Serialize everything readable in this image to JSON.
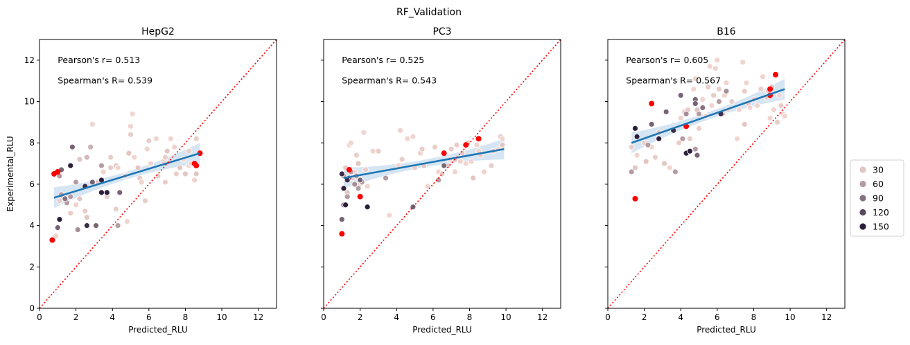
{
  "figure": {
    "suptitle": "RF_Validation",
    "hue_legend": {
      "entries": [
        {
          "label": "30",
          "value": 30
        },
        {
          "label": "60",
          "value": 60
        },
        {
          "label": "90",
          "value": 90
        },
        {
          "label": "120",
          "value": 120
        },
        {
          "label": "150",
          "value": 150
        }
      ]
    },
    "colors": {
      "palette_low": "#f0d4cf",
      "palette_high": "#2c1e3d",
      "fit_line": "#1f77b4",
      "ci_band": "#cfe0f1",
      "diagonal": "#ff0000",
      "highlight": "#ff0000"
    }
  },
  "chart_data": [
    {
      "type": "scatter",
      "title": "HepG2",
      "xlabel": "Predicted_RLU",
      "ylabel": "Experimental_RLU",
      "xlim": [
        0,
        13
      ],
      "ylim": [
        0,
        13
      ],
      "xticks": [
        "0",
        "2",
        "4",
        "6",
        "8",
        "10",
        "12"
      ],
      "yticks": [
        "0",
        "2",
        "4",
        "6",
        "8",
        "10",
        "12"
      ],
      "grid": false,
      "annotations": [
        "Pearson's r= 0.513",
        "Spearman's R= 0.539"
      ],
      "fit_line": {
        "x": [
          0.8,
          8.8
        ],
        "y": [
          5.35,
          7.5
        ]
      },
      "identity_line": true,
      "points": [
        [
          0.9,
          3.5,
          20
        ],
        [
          1.1,
          5.2,
          25
        ],
        [
          1.3,
          5.4,
          30
        ],
        [
          1.7,
          4.6,
          25
        ],
        [
          2.0,
          5.0,
          20
        ],
        [
          2.2,
          5.3,
          30
        ],
        [
          2.5,
          4.7,
          25
        ],
        [
          2.6,
          4.4,
          30
        ],
        [
          2.9,
          8.9,
          20
        ],
        [
          2.8,
          7.8,
          45
        ],
        [
          2.2,
          7.2,
          30
        ],
        [
          3.2,
          6.1,
          30
        ],
        [
          3.5,
          6.6,
          20
        ],
        [
          3.7,
          5.4,
          25
        ],
        [
          3.9,
          7.3,
          25
        ],
        [
          4.2,
          6.9,
          30
        ],
        [
          4.3,
          6.8,
          20
        ],
        [
          4.7,
          6.4,
          25
        ],
        [
          4.8,
          4.2,
          20
        ],
        [
          4.9,
          7.5,
          30
        ],
        [
          5.0,
          8.8,
          20
        ],
        [
          5.1,
          9.4,
          20
        ],
        [
          5.0,
          8.4,
          25
        ],
        [
          5.2,
          7.3,
          20
        ],
        [
          5.4,
          6.8,
          30
        ],
        [
          5.5,
          6.3,
          25
        ],
        [
          5.6,
          6.1,
          20
        ],
        [
          5.8,
          5.2,
          25
        ],
        [
          5.9,
          7.7,
          20
        ],
        [
          6.0,
          8.1,
          25
        ],
        [
          6.1,
          7.0,
          20
        ],
        [
          6.4,
          8.2,
          20
        ],
        [
          6.5,
          6.4,
          25
        ],
        [
          6.8,
          7.1,
          20
        ],
        [
          6.9,
          6.1,
          25
        ],
        [
          7.0,
          7.6,
          30
        ],
        [
          7.2,
          8.2,
          20
        ],
        [
          7.4,
          7.8,
          20
        ],
        [
          7.5,
          6.5,
          25
        ],
        [
          7.9,
          7.2,
          20
        ],
        [
          8.0,
          6.5,
          30
        ],
        [
          8.2,
          6.9,
          20
        ],
        [
          8.2,
          7.6,
          25
        ],
        [
          8.5,
          6.2,
          20
        ],
        [
          8.6,
          8.2,
          25
        ],
        [
          8.6,
          6.5,
          30
        ],
        [
          8.3,
          7.0,
          20
        ],
        [
          7.7,
          6.8,
          30
        ],
        [
          6.9,
          7.3,
          25
        ],
        [
          3.9,
          6.8,
          25
        ],
        [
          1.1,
          6.4,
          60
        ],
        [
          1.2,
          5.5,
          60
        ],
        [
          1.7,
          5.4,
          60
        ],
        [
          2.0,
          6.1,
          60
        ],
        [
          2.1,
          3.8,
          70
        ],
        [
          3.4,
          6.9,
          60
        ],
        [
          4.3,
          4.0,
          60
        ],
        [
          4.2,
          4.8,
          25
        ],
        [
          2.6,
          7.3,
          40
        ],
        [
          1.5,
          5.1,
          60
        ],
        [
          1.8,
          7.8,
          100
        ],
        [
          1.2,
          6.7,
          100
        ],
        [
          1.4,
          5.3,
          90
        ],
        [
          2.9,
          6.1,
          100
        ],
        [
          3.1,
          4.0,
          100
        ],
        [
          4.4,
          5.6,
          100
        ],
        [
          1.0,
          3.9,
          100
        ],
        [
          1.1,
          4.3,
          150
        ],
        [
          1.7,
          6.9,
          150
        ],
        [
          2.6,
          4.0,
          140
        ],
        [
          2.5,
          5.9,
          140
        ],
        [
          3.4,
          6.2,
          150
        ],
        [
          3.4,
          5.6,
          150
        ],
        [
          3.7,
          5.6,
          150
        ]
      ],
      "red_points": [
        [
          0.7,
          3.3
        ],
        [
          0.8,
          6.5
        ],
        [
          1.0,
          6.6
        ],
        [
          8.5,
          7.0
        ],
        [
          8.6,
          6.9
        ],
        [
          8.8,
          7.5
        ]
      ]
    },
    {
      "type": "scatter",
      "title": "PC3",
      "xlabel": "Predicted_RLU",
      "ylabel": "",
      "xlim": [
        0,
        13
      ],
      "ylim": [
        0,
        13
      ],
      "xticks": [
        "0",
        "2",
        "4",
        "6",
        "8",
        "10",
        "12"
      ],
      "yticks": [],
      "grid": false,
      "annotations": [
        "Pearson's r= 0.525",
        "Spearman's R= 0.543"
      ],
      "fit_line": {
        "x": [
          1.1,
          9.9
        ],
        "y": [
          6.3,
          7.7
        ]
      },
      "identity_line": true,
      "points": [
        [
          1.2,
          6.8,
          25
        ],
        [
          1.3,
          5.6,
          30
        ],
        [
          1.4,
          7.9,
          20
        ],
        [
          1.5,
          8.0,
          20
        ],
        [
          1.6,
          6.3,
          25
        ],
        [
          1.7,
          6.6,
          20
        ],
        [
          1.8,
          7.4,
          25
        ],
        [
          1.9,
          7.0,
          30
        ],
        [
          2.0,
          6.0,
          20
        ],
        [
          2.2,
          8.5,
          20
        ],
        [
          2.3,
          6.7,
          25
        ],
        [
          2.4,
          5.9,
          20
        ],
        [
          2.7,
          7.6,
          20
        ],
        [
          3.0,
          7.6,
          25
        ],
        [
          3.6,
          4.5,
          20
        ],
        [
          4.1,
          6.9,
          20
        ],
        [
          4.2,
          8.6,
          20
        ],
        [
          4.3,
          7.2,
          25
        ],
        [
          4.6,
          8.2,
          20
        ],
        [
          4.9,
          8.3,
          20
        ],
        [
          5.0,
          6.8,
          25
        ],
        [
          5.3,
          7.5,
          20
        ],
        [
          5.4,
          7.7,
          25
        ],
        [
          5.5,
          6.9,
          30
        ],
        [
          5.7,
          5.9,
          20
        ],
        [
          6.1,
          7.8,
          25
        ],
        [
          6.3,
          6.6,
          20
        ],
        [
          6.5,
          6.5,
          25
        ],
        [
          6.8,
          6.9,
          30
        ],
        [
          6.9,
          7.2,
          20
        ],
        [
          7.0,
          7.7,
          25
        ],
        [
          7.2,
          6.6,
          20
        ],
        [
          7.3,
          7.9,
          25
        ],
        [
          7.5,
          7.1,
          20
        ],
        [
          7.6,
          7.5,
          30
        ],
        [
          7.8,
          7.0,
          20
        ],
        [
          7.9,
          8.0,
          25
        ],
        [
          8.1,
          7.1,
          20
        ],
        [
          8.2,
          6.3,
          30
        ],
        [
          8.4,
          7.9,
          20
        ],
        [
          8.6,
          7.4,
          25
        ],
        [
          8.8,
          6.6,
          20
        ],
        [
          9.2,
          6.9,
          25
        ],
        [
          9.6,
          7.7,
          20
        ],
        [
          9.7,
          8.3,
          25
        ],
        [
          9.8,
          7.9,
          30
        ],
        [
          9.8,
          8.2,
          20
        ],
        [
          9.3,
          7.6,
          25
        ],
        [
          8.5,
          7.6,
          20
        ],
        [
          7.2,
          7.2,
          30
        ],
        [
          1.1,
          6.4,
          60
        ],
        [
          1.3,
          5.4,
          60
        ],
        [
          1.5,
          6.6,
          60
        ],
        [
          1.7,
          6.0,
          70
        ],
        [
          1.8,
          6.4,
          60
        ],
        [
          1.9,
          5.8,
          60
        ],
        [
          2.1,
          6.1,
          60
        ],
        [
          3.4,
          6.3,
          60
        ],
        [
          6.3,
          6.2,
          60
        ],
        [
          1.0,
          4.3,
          100
        ],
        [
          1.1,
          5.0,
          90
        ],
        [
          1.4,
          6.3,
          100
        ],
        [
          2.0,
          6.2,
          100
        ],
        [
          4.9,
          4.9,
          100
        ],
        [
          6.6,
          6.9,
          100
        ],
        [
          1.1,
          5.8,
          150
        ],
        [
          1.2,
          5.0,
          150
        ],
        [
          1.0,
          6.5,
          140
        ],
        [
          2.4,
          4.9,
          150
        ],
        [
          1.3,
          6.2,
          140
        ]
      ],
      "red_points": [
        [
          1.0,
          3.6
        ],
        [
          1.4,
          6.7
        ],
        [
          2.0,
          5.4
        ],
        [
          6.6,
          7.5
        ],
        [
          7.8,
          7.9
        ],
        [
          8.5,
          8.2
        ]
      ]
    },
    {
      "type": "scatter",
      "title": "B16",
      "xlabel": "Predicted_RLU",
      "ylabel": "",
      "xlim": [
        0,
        13
      ],
      "ylim": [
        0,
        13
      ],
      "xticks": [
        "0",
        "2",
        "4",
        "6",
        "8",
        "10",
        "12"
      ],
      "yticks": [],
      "grid": false,
      "annotations": [
        "Pearson's r= 0.605",
        "Spearman's R= 0.567"
      ],
      "fit_line": {
        "x": [
          1.3,
          9.7
        ],
        "y": [
          8.0,
          10.6
        ]
      },
      "identity_line": true,
      "points": [
        [
          1.3,
          7.8,
          25
        ],
        [
          1.5,
          6.8,
          30
        ],
        [
          1.6,
          7.4,
          20
        ],
        [
          2.0,
          8.0,
          25
        ],
        [
          2.1,
          7.1,
          30
        ],
        [
          2.4,
          7.8,
          20
        ],
        [
          2.6,
          7.3,
          25
        ],
        [
          3.1,
          7.0,
          30
        ],
        [
          3.4,
          6.8,
          20
        ],
        [
          3.9,
          8.0,
          25
        ],
        [
          4.0,
          9.2,
          20
        ],
        [
          4.2,
          9.5,
          20
        ],
        [
          4.4,
          9.6,
          25
        ],
        [
          4.7,
          10.6,
          20
        ],
        [
          4.8,
          11.1,
          20
        ],
        [
          4.9,
          9.6,
          30
        ],
        [
          5.0,
          8.7,
          25
        ],
        [
          5.2,
          10.1,
          20
        ],
        [
          5.4,
          9.3,
          20
        ],
        [
          5.5,
          10.7,
          25
        ],
        [
          5.6,
          11.7,
          20
        ],
        [
          5.7,
          9.8,
          20
        ],
        [
          5.8,
          10.3,
          25
        ],
        [
          5.9,
          11.6,
          20
        ],
        [
          6.0,
          12.0,
          20
        ],
        [
          6.1,
          10.6,
          25
        ],
        [
          6.3,
          9.4,
          30
        ],
        [
          6.4,
          10.3,
          20
        ],
        [
          6.5,
          10.9,
          20
        ],
        [
          6.8,
          10.0,
          25
        ],
        [
          7.1,
          8.2,
          20
        ],
        [
          7.2,
          9.6,
          20
        ],
        [
          7.4,
          11.9,
          20
        ],
        [
          7.5,
          10.5,
          25
        ],
        [
          7.6,
          10.9,
          20
        ],
        [
          7.7,
          9.9,
          30
        ],
        [
          7.8,
          9.7,
          20
        ],
        [
          8.0,
          10.1,
          25
        ],
        [
          8.2,
          9.8,
          20
        ],
        [
          8.4,
          10.6,
          25
        ],
        [
          8.5,
          11.2,
          20
        ],
        [
          8.7,
          10.2,
          25
        ],
        [
          8.9,
          9.2,
          20
        ],
        [
          9.0,
          10.7,
          30
        ],
        [
          9.1,
          9.6,
          20
        ],
        [
          9.3,
          9.0,
          25
        ],
        [
          9.4,
          10.3,
          20
        ],
        [
          9.5,
          9.8,
          25
        ],
        [
          9.6,
          9.4,
          20
        ],
        [
          7.5,
          8.9,
          30
        ],
        [
          4.5,
          8.2,
          25
        ],
        [
          6.6,
          9.6,
          20
        ],
        [
          2.8,
          8.5,
          30
        ],
        [
          9.7,
          9.3,
          20
        ],
        [
          8.8,
          10.5,
          25
        ],
        [
          1.3,
          6.6,
          60
        ],
        [
          2.2,
          7.9,
          60
        ],
        [
          3.7,
          6.6,
          60
        ],
        [
          4.1,
          8.2,
          60
        ],
        [
          4.3,
          9.4,
          70
        ],
        [
          4.8,
          7.7,
          60
        ],
        [
          5.0,
          9.4,
          60
        ],
        [
          6.1,
          10.0,
          60
        ],
        [
          6.5,
          10.5,
          70
        ],
        [
          2.4,
          8.9,
          100
        ],
        [
          3.2,
          9.5,
          100
        ],
        [
          4.0,
          10.3,
          100
        ],
        [
          4.8,
          10.1,
          100
        ],
        [
          4.8,
          9.9,
          100
        ],
        [
          4.9,
          7.4,
          100
        ],
        [
          5.2,
          9.7,
          90
        ],
        [
          1.5,
          8.7,
          150
        ],
        [
          1.6,
          8.3,
          150
        ],
        [
          2.8,
          8.2,
          150
        ],
        [
          4.3,
          7.5,
          150
        ],
        [
          4.5,
          7.6,
          150
        ],
        [
          6.2,
          9.4,
          140
        ],
        [
          3.6,
          8.6,
          140
        ]
      ],
      "red_points": [
        [
          1.5,
          5.3
        ],
        [
          2.4,
          9.9
        ],
        [
          4.3,
          8.8
        ],
        [
          8.9,
          10.3
        ],
        [
          8.9,
          10.6
        ],
        [
          9.2,
          11.3
        ]
      ]
    }
  ]
}
